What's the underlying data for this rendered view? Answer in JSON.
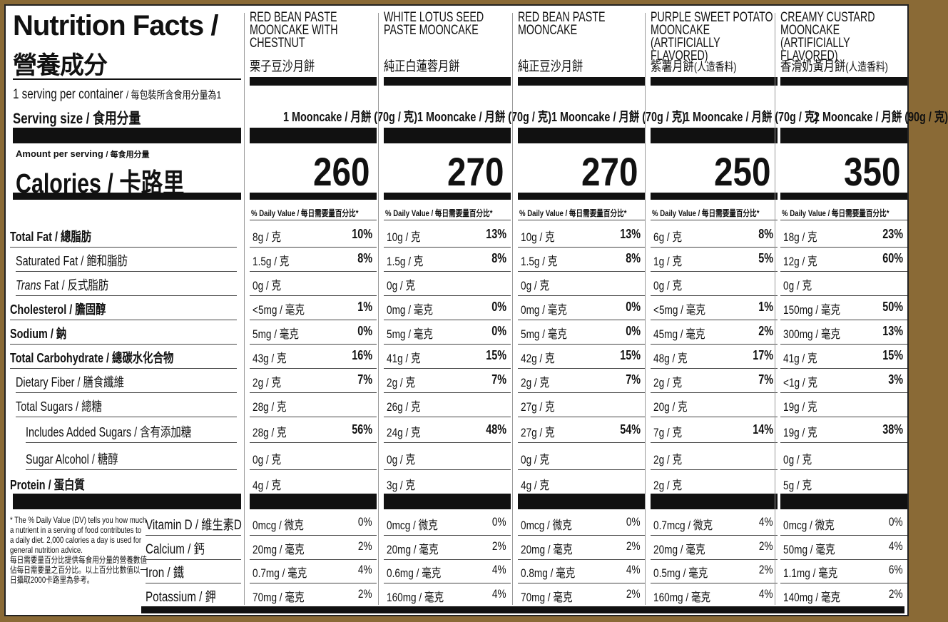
{
  "header": {
    "title": "Nutrition Facts /",
    "title_zh": "營養成分",
    "servings": "1 serving per container",
    "servings_zh": "/ 每包裝所含食用分量為1",
    "serving_size": "Serving size /",
    "serving_size_zh": "食用分量",
    "amount_per_serving": "Amount per serving",
    "amount_per_serving_zh": "/ 每食用分量",
    "calories": "Calories /",
    "calories_zh": "卡路里",
    "dv_header": "% Daily Value / 每日需要量百分比*"
  },
  "nutrients": [
    {
      "label": "Total Fat",
      "zh": "/ 總脂肪",
      "bold": true,
      "indent": 0
    },
    {
      "label": "Saturated Fat",
      "zh": "/ 飽和脂肪",
      "bold": false,
      "indent": 1
    },
    {
      "label": "Trans",
      "label2": " Fat",
      "zh": "/ 反式脂肪",
      "bold": false,
      "indent": 1,
      "italic": true
    },
    {
      "label": "Cholesterol",
      "zh": "/ 膽固醇",
      "bold": true,
      "indent": 0
    },
    {
      "label": "Sodium",
      "zh": "/ 鈉",
      "bold": true,
      "indent": 0
    },
    {
      "label": "Total Carbohydrate",
      "zh": "/ 總碳水化合物",
      "bold": true,
      "indent": 0
    },
    {
      "label": "Dietary Fiber",
      "zh": "/ 膳食纖維",
      "bold": false,
      "indent": 1
    },
    {
      "label": "Total Sugars",
      "zh": "/ 總糖",
      "bold": false,
      "indent": 1
    },
    {
      "label": "Includes Added Sugars",
      "zh": "/ 含有添加糖",
      "bold": false,
      "indent": 2
    },
    {
      "label": "Sugar Alcohol",
      "zh": "/ 糖醇",
      "bold": false,
      "indent": 2
    },
    {
      "label": "Protein",
      "zh": "/ 蛋白質",
      "bold": true,
      "indent": 0
    }
  ],
  "vitamins": [
    {
      "label": "Vitamin D / 維生素D"
    },
    {
      "label": "Calcium  / 鈣"
    },
    {
      "label": "Iron / 鐵"
    },
    {
      "label": "Potassium  / 鉀"
    }
  ],
  "footnote": "* The % Daily Value (DV) tells you how much a nutrient in a serving of food contributes to a daily diet. 2,000 calories a day is used for general nutrition advice.",
  "footnote_zh": "每日需要量百分比提供每食用分量的營養數值佔每日需要量之百分比。以上百分比數值以一日攝取2000卡路里為參考。",
  "products": [
    {
      "name": "RED BEAN PASTE MOONCAKE WITH CHESTNUT",
      "name_zh": "栗子豆沙月餅",
      "name_zh_note": "",
      "serving": "1 Mooncake / 月餅 (70g / 克)",
      "calories": "260",
      "values": [
        [
          "8g / 克",
          "10%"
        ],
        [
          "1.5g / 克",
          "8%"
        ],
        [
          "0g / 克",
          ""
        ],
        [
          "<5mg / 毫克",
          "1%"
        ],
        [
          "5mg / 毫克",
          "0%"
        ],
        [
          "43g / 克",
          "16%"
        ],
        [
          "2g / 克",
          "7%"
        ],
        [
          "28g / 克",
          ""
        ],
        [
          "28g / 克",
          "56%"
        ],
        [
          "0g / 克",
          ""
        ],
        [
          "4g / 克",
          ""
        ]
      ],
      "vitamins": [
        [
          "0mcg / 微克",
          "0%"
        ],
        [
          "20mg / 毫克",
          "2%"
        ],
        [
          "0.7mg / 毫克",
          "4%"
        ],
        [
          "70mg / 毫克",
          "2%"
        ]
      ]
    },
    {
      "name": "WHITE LOTUS SEED PASTE MOONCAKE",
      "name_zh": "純正白蓮蓉月餅",
      "name_zh_note": "",
      "serving": "1 Mooncake / 月餅 (70g / 克)",
      "calories": "270",
      "values": [
        [
          "10g / 克",
          "13%"
        ],
        [
          "1.5g / 克",
          "8%"
        ],
        [
          "0g / 克",
          ""
        ],
        [
          "0mg / 毫克",
          "0%"
        ],
        [
          "5mg / 毫克",
          "0%"
        ],
        [
          "41g / 克",
          "15%"
        ],
        [
          "2g / 克",
          "7%"
        ],
        [
          "26g / 克",
          ""
        ],
        [
          "24g / 克",
          "48%"
        ],
        [
          "0g / 克",
          ""
        ],
        [
          "3g / 克",
          ""
        ]
      ],
      "vitamins": [
        [
          "0mcg / 微克",
          "0%"
        ],
        [
          "20mg / 毫克",
          "2%"
        ],
        [
          "0.6mg / 毫克",
          "4%"
        ],
        [
          "160mg / 毫克",
          "4%"
        ]
      ]
    },
    {
      "name": "RED BEAN PASTE MOONCAKE",
      "name_zh": "純正豆沙月餅",
      "name_zh_note": "",
      "serving": "1 Mooncake / 月餅 (70g / 克)",
      "calories": "270",
      "values": [
        [
          "10g / 克",
          "13%"
        ],
        [
          "1.5g / 克",
          "8%"
        ],
        [
          "0g / 克",
          ""
        ],
        [
          "0mg / 毫克",
          "0%"
        ],
        [
          "5mg / 毫克",
          "0%"
        ],
        [
          "42g / 克",
          "15%"
        ],
        [
          "2g / 克",
          "7%"
        ],
        [
          "27g / 克",
          ""
        ],
        [
          "27g / 克",
          "54%"
        ],
        [
          "0g / 克",
          ""
        ],
        [
          "4g / 克",
          ""
        ]
      ],
      "vitamins": [
        [
          "0mcg / 微克",
          "0%"
        ],
        [
          "20mg / 毫克",
          "2%"
        ],
        [
          "0.8mg / 毫克",
          "4%"
        ],
        [
          "70mg / 毫克",
          "2%"
        ]
      ]
    },
    {
      "name": "PURPLE SWEET POTATO MOONCAKE (ARTIFICIALLY FLAVORED)",
      "name_zh": "紫薯月餅",
      "name_zh_note": "(人造香料)",
      "serving": "1 Mooncake / 月餅 (70g / 克)",
      "calories": "250",
      "values": [
        [
          "6g / 克",
          "8%"
        ],
        [
          "1g / 克",
          "5%"
        ],
        [
          "0g / 克",
          ""
        ],
        [
          "<5mg / 毫克",
          "1%"
        ],
        [
          "45mg / 毫克",
          "2%"
        ],
        [
          "48g / 克",
          "17%"
        ],
        [
          "2g / 克",
          "7%"
        ],
        [
          "20g / 克",
          ""
        ],
        [
          "7g / 克",
          "14%"
        ],
        [
          "2g / 克",
          ""
        ],
        [
          "2g / 克",
          ""
        ]
      ],
      "vitamins": [
        [
          "0.7mcg / 微克",
          "4%"
        ],
        [
          "20mg / 毫克",
          "2%"
        ],
        [
          "0.5mg / 毫克",
          "2%"
        ],
        [
          "160mg / 毫克",
          "4%"
        ]
      ]
    },
    {
      "name": "CREAMY CUSTARD MOONCAKE (ARTIFICIALLY FLAVORED)",
      "name_zh": "香滑奶黃月餅",
      "name_zh_note": "(人造香料)",
      "serving": "2 Mooncake / 月餅 (90g / 克)",
      "calories": "350",
      "values": [
        [
          "18g / 克",
          "23%"
        ],
        [
          "12g / 克",
          "60%"
        ],
        [
          "0g / 克",
          ""
        ],
        [
          "150mg / 毫克",
          "50%"
        ],
        [
          "300mg / 毫克",
          "13%"
        ],
        [
          "41g / 克",
          "15%"
        ],
        [
          "<1g / 克",
          "3%"
        ],
        [
          "19g / 克",
          ""
        ],
        [
          "19g / 克",
          "38%"
        ],
        [
          "0g / 克",
          ""
        ],
        [
          "5g / 克",
          ""
        ]
      ],
      "vitamins": [
        [
          "0mcg / 微克",
          "0%"
        ],
        [
          "50mg / 毫克",
          "4%"
        ],
        [
          "1.1mg / 毫克",
          "6%"
        ],
        [
          "140mg / 毫克",
          "2%"
        ]
      ]
    }
  ],
  "colors": {
    "frame": "#8a6a36",
    "bars": "#111111"
  }
}
